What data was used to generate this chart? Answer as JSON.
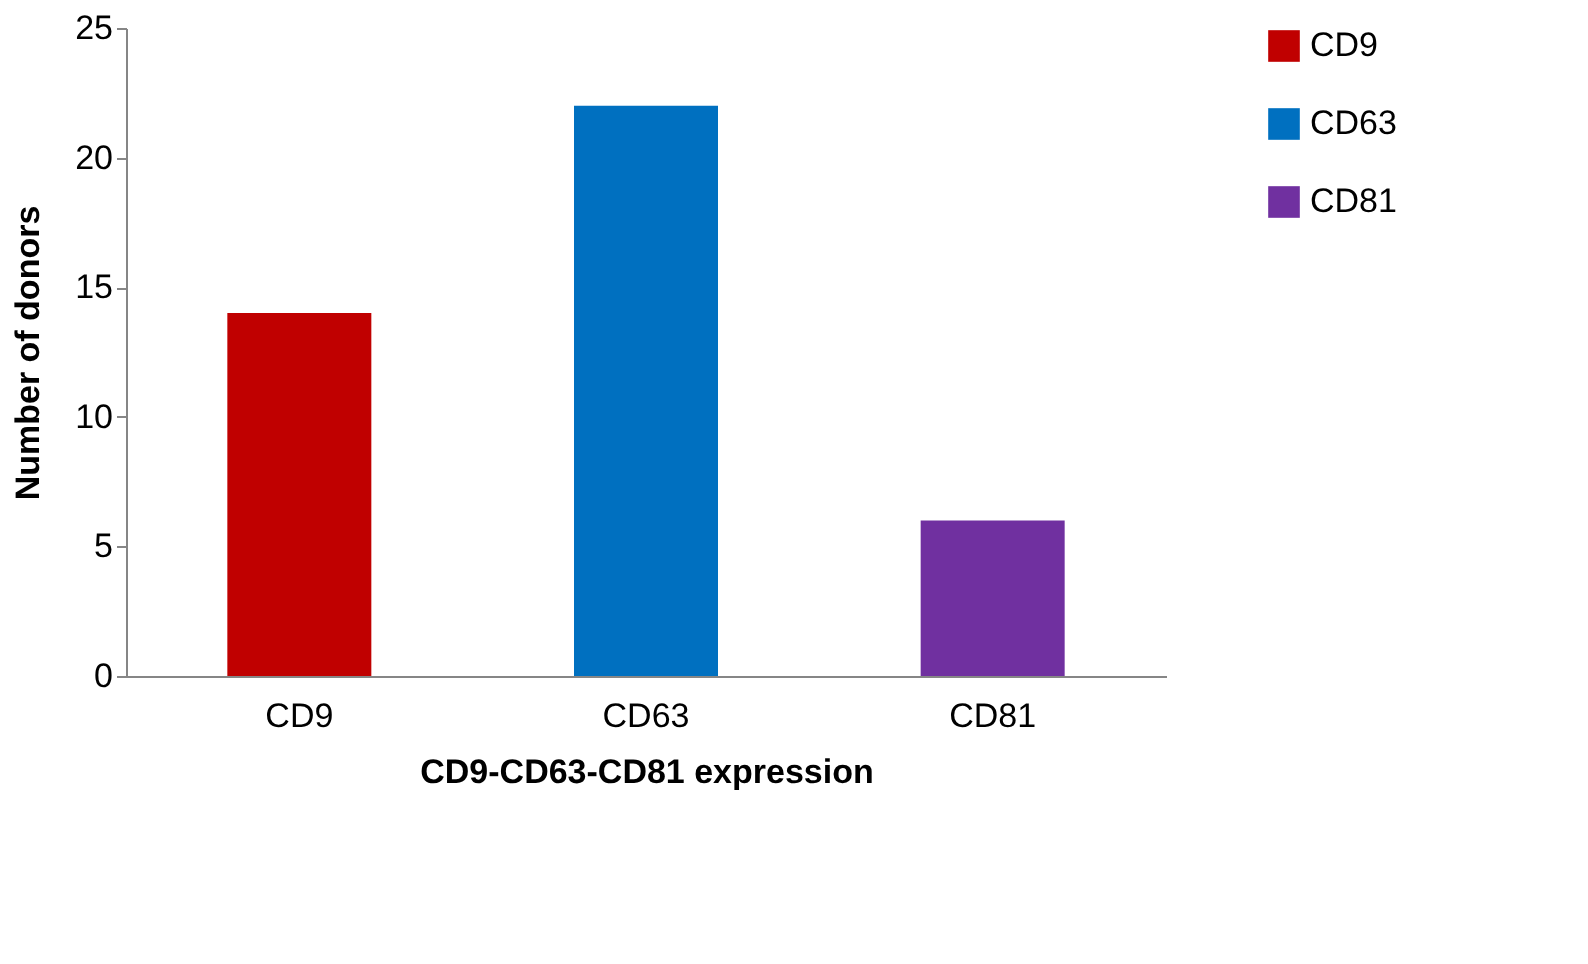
{
  "chart_data": {
    "type": "bar",
    "xlabel": "CD9-CD63-CD81 expression",
    "ylabel": "Number of donors",
    "categories": [
      "CD9",
      "CD63",
      "CD81"
    ],
    "series": [
      {
        "name": "CD9",
        "color": "#c00000",
        "values": [
          14,
          null,
          null
        ]
      },
      {
        "name": "CD63",
        "color": "#0070c0",
        "values": [
          null,
          22,
          null
        ]
      },
      {
        "name": "CD81",
        "color": "#7030a0",
        "values": [
          null,
          null,
          6
        ]
      }
    ],
    "ylim": [
      0,
      25
    ],
    "yticks": [
      0,
      5,
      10,
      15,
      20,
      25
    ],
    "grid": false,
    "legend": "right"
  }
}
